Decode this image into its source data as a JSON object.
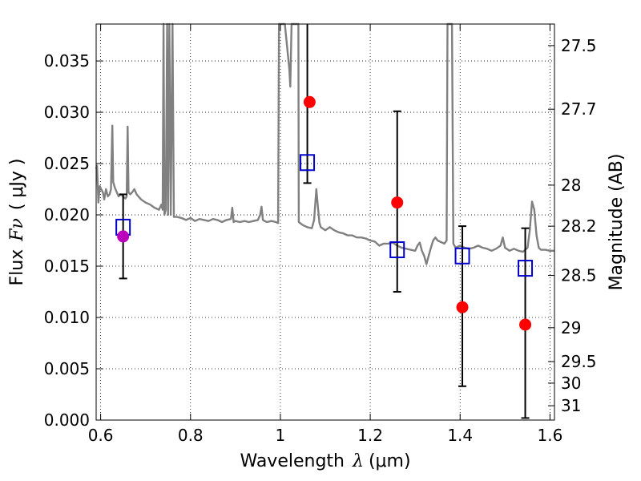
{
  "chart_data": {
    "type": "scatter",
    "xlabel_text": "Wavelength",
    "xlabel_symbol": "λ",
    "xlabel_unit": "(μm)",
    "ylabel_text": "Flux",
    "ylabel_symbol": "Fν",
    "ylabel_unit": "( μJy )",
    "y2label": "Magnitude (AB)",
    "xlim": [
      0.59,
      1.61
    ],
    "ylim": [
      0.0,
      0.0386
    ],
    "x_ticks": [
      0.6,
      0.8,
      1.0,
      1.2,
      1.4,
      1.6
    ],
    "x_tick_labels": [
      "0.6",
      "0.8",
      "1",
      "1.2",
      "1.4",
      "1.6"
    ],
    "y_ticks": [
      0.0,
      0.005,
      0.01,
      0.015,
      0.02,
      0.025,
      0.03,
      0.035
    ],
    "y_tick_labels": [
      "0.000",
      "0.005",
      "0.010",
      "0.015",
      "0.020",
      "0.025",
      "0.030",
      "0.035"
    ],
    "y2_ticks": [
      {
        "label": "27.5",
        "flux": 0.0365
      },
      {
        "label": "27.7",
        "flux": 0.0303
      },
      {
        "label": "28",
        "flux": 0.0229
      },
      {
        "label": "28.2",
        "flux": 0.0189
      },
      {
        "label": "28.5",
        "flux": 0.0141
      },
      {
        "label": "29",
        "flux": 0.009
      },
      {
        "label": "29.5",
        "flux": 0.0057
      },
      {
        "label": "30",
        "flux": 0.0036
      },
      {
        "label": "31",
        "flux": 0.0014
      }
    ],
    "grid": true,
    "series": [
      {
        "kind": "line",
        "color": "#808080",
        "points": [
          [
            0.59,
            0.0245
          ],
          [
            0.592,
            0.0248
          ],
          [
            0.595,
            0.0212
          ],
          [
            0.598,
            0.0228
          ],
          [
            0.601,
            0.0225
          ],
          [
            0.605,
            0.0222
          ],
          [
            0.608,
            0.0215
          ],
          [
            0.612,
            0.0225
          ],
          [
            0.616,
            0.0218
          ],
          [
            0.62,
            0.022
          ],
          [
            0.623,
            0.0225
          ],
          [
            0.626,
            0.0287
          ],
          [
            0.628,
            0.0232
          ],
          [
            0.632,
            0.0226
          ],
          [
            0.636,
            0.0222
          ],
          [
            0.64,
            0.0218
          ],
          [
            0.645,
            0.022
          ],
          [
            0.65,
            0.0218
          ],
          [
            0.655,
            0.0216
          ],
          [
            0.658,
            0.0218
          ],
          [
            0.66,
            0.0286
          ],
          [
            0.662,
            0.0222
          ],
          [
            0.666,
            0.022
          ],
          [
            0.67,
            0.0222
          ],
          [
            0.675,
            0.0225
          ],
          [
            0.68,
            0.022
          ],
          [
            0.69,
            0.0215
          ],
          [
            0.7,
            0.0212
          ],
          [
            0.71,
            0.021
          ],
          [
            0.72,
            0.0207
          ],
          [
            0.73,
            0.0205
          ],
          [
            0.735,
            0.021
          ],
          [
            0.738,
            0.0205
          ],
          [
            0.74,
            0.0386
          ],
          [
            0.742,
            0.02
          ],
          [
            0.745,
            0.0205
          ],
          [
            0.748,
            0.0386
          ],
          [
            0.75,
            0.02
          ],
          [
            0.753,
            0.0386
          ],
          [
            0.756,
            0.02
          ],
          [
            0.76,
            0.0386
          ],
          [
            0.763,
            0.0198
          ],
          [
            0.77,
            0.0198
          ],
          [
            0.78,
            0.0197
          ],
          [
            0.79,
            0.0195
          ],
          [
            0.8,
            0.0197
          ],
          [
            0.81,
            0.0194
          ],
          [
            0.82,
            0.0196
          ],
          [
            0.83,
            0.0195
          ],
          [
            0.84,
            0.0194
          ],
          [
            0.85,
            0.0196
          ],
          [
            0.86,
            0.0195
          ],
          [
            0.87,
            0.0193
          ],
          [
            0.88,
            0.0195
          ],
          [
            0.89,
            0.0196
          ],
          [
            0.893,
            0.0207
          ],
          [
            0.896,
            0.0193
          ],
          [
            0.9,
            0.0194
          ],
          [
            0.91,
            0.0193
          ],
          [
            0.92,
            0.0194
          ],
          [
            0.93,
            0.0193
          ],
          [
            0.94,
            0.0194
          ],
          [
            0.95,
            0.0195
          ],
          [
            0.955,
            0.02
          ],
          [
            0.958,
            0.0208
          ],
          [
            0.961,
            0.0195
          ],
          [
            0.965,
            0.0194
          ],
          [
            0.97,
            0.0193
          ],
          [
            0.98,
            0.0194
          ],
          [
            0.99,
            0.0193
          ],
          [
            0.995,
            0.0192
          ],
          [
            0.997,
            0.0386
          ],
          [
            1.01,
            0.0386
          ],
          [
            1.02,
            0.0342
          ],
          [
            1.022,
            0.0325
          ],
          [
            1.025,
            0.0386
          ],
          [
            1.03,
            0.0386
          ],
          [
            1.04,
            0.0386
          ],
          [
            1.041,
            0.0193
          ],
          [
            1.05,
            0.019
          ],
          [
            1.06,
            0.0188
          ],
          [
            1.07,
            0.0187
          ],
          [
            1.075,
            0.0195
          ],
          [
            1.08,
            0.0225
          ],
          [
            1.083,
            0.021
          ],
          [
            1.087,
            0.0192
          ],
          [
            1.09,
            0.0188
          ],
          [
            1.1,
            0.0185
          ],
          [
            1.11,
            0.0188
          ],
          [
            1.12,
            0.0185
          ],
          [
            1.13,
            0.0183
          ],
          [
            1.14,
            0.0182
          ],
          [
            1.15,
            0.018
          ],
          [
            1.16,
            0.018
          ],
          [
            1.17,
            0.0178
          ],
          [
            1.18,
            0.0178
          ],
          [
            1.19,
            0.0177
          ],
          [
            1.2,
            0.0175
          ],
          [
            1.21,
            0.0174
          ],
          [
            1.22,
            0.017
          ],
          [
            1.23,
            0.0172
          ],
          [
            1.24,
            0.0172
          ],
          [
            1.25,
            0.0173
          ],
          [
            1.26,
            0.017
          ],
          [
            1.27,
            0.0168
          ],
          [
            1.28,
            0.0167
          ],
          [
            1.29,
            0.0166
          ],
          [
            1.3,
            0.0165
          ],
          [
            1.305,
            0.017
          ],
          [
            1.31,
            0.0173
          ],
          [
            1.315,
            0.0165
          ],
          [
            1.32,
            0.016
          ],
          [
            1.325,
            0.0152
          ],
          [
            1.33,
            0.016
          ],
          [
            1.335,
            0.0168
          ],
          [
            1.34,
            0.0175
          ],
          [
            1.345,
            0.0178
          ],
          [
            1.35,
            0.0175
          ],
          [
            1.36,
            0.0173
          ],
          [
            1.365,
            0.0172
          ],
          [
            1.37,
            0.0175
          ],
          [
            1.372,
            0.0386
          ],
          [
            1.382,
            0.0386
          ],
          [
            1.385,
            0.0172
          ],
          [
            1.39,
            0.0168
          ],
          [
            1.4,
            0.017
          ],
          [
            1.41,
            0.0168
          ],
          [
            1.42,
            0.0167
          ],
          [
            1.43,
            0.0168
          ],
          [
            1.44,
            0.017
          ],
          [
            1.45,
            0.0168
          ],
          [
            1.46,
            0.0167
          ],
          [
            1.47,
            0.0165
          ],
          [
            1.48,
            0.0167
          ],
          [
            1.49,
            0.017
          ],
          [
            1.495,
            0.0178
          ],
          [
            1.5,
            0.0168
          ],
          [
            1.51,
            0.0165
          ],
          [
            1.52,
            0.0167
          ],
          [
            1.53,
            0.0165
          ],
          [
            1.54,
            0.0164
          ],
          [
            1.55,
            0.0168
          ],
          [
            1.555,
            0.0185
          ],
          [
            1.56,
            0.0213
          ],
          [
            1.565,
            0.0205
          ],
          [
            1.57,
            0.018
          ],
          [
            1.575,
            0.0168
          ],
          [
            1.58,
            0.0166
          ],
          [
            1.59,
            0.0166
          ],
          [
            1.6,
            0.0165
          ],
          [
            1.61,
            0.0165
          ]
        ]
      },
      {
        "kind": "errorbar",
        "color": "#000000",
        "bars": [
          {
            "x": 0.65,
            "low": 0.0138,
            "high": 0.022
          },
          {
            "x": 1.06,
            "low": 0.0231,
            "high": 0.0386
          },
          {
            "x": 1.26,
            "low": 0.0125,
            "high": 0.0301
          },
          {
            "x": 1.405,
            "low": 0.0033,
            "high": 0.0189
          },
          {
            "x": 1.545,
            "low": 0.0002,
            "high": 0.0187
          }
        ]
      },
      {
        "kind": "open-square",
        "color": "#0000cc",
        "points": [
          {
            "x": 0.65,
            "y": 0.0188
          },
          {
            "x": 1.06,
            "y": 0.0251
          },
          {
            "x": 1.26,
            "y": 0.0166
          },
          {
            "x": 1.405,
            "y": 0.016
          },
          {
            "x": 1.545,
            "y": 0.0148
          }
        ]
      },
      {
        "kind": "filled-circle",
        "color": "#ff0000",
        "points": [
          {
            "x": 1.065,
            "y": 0.031
          },
          {
            "x": 1.26,
            "y": 0.0212
          },
          {
            "x": 1.405,
            "y": 0.011
          },
          {
            "x": 1.545,
            "y": 0.0093
          }
        ]
      },
      {
        "kind": "filled-circle",
        "color": "#bb00bb",
        "points": [
          {
            "x": 0.65,
            "y": 0.0179
          }
        ]
      }
    ]
  }
}
